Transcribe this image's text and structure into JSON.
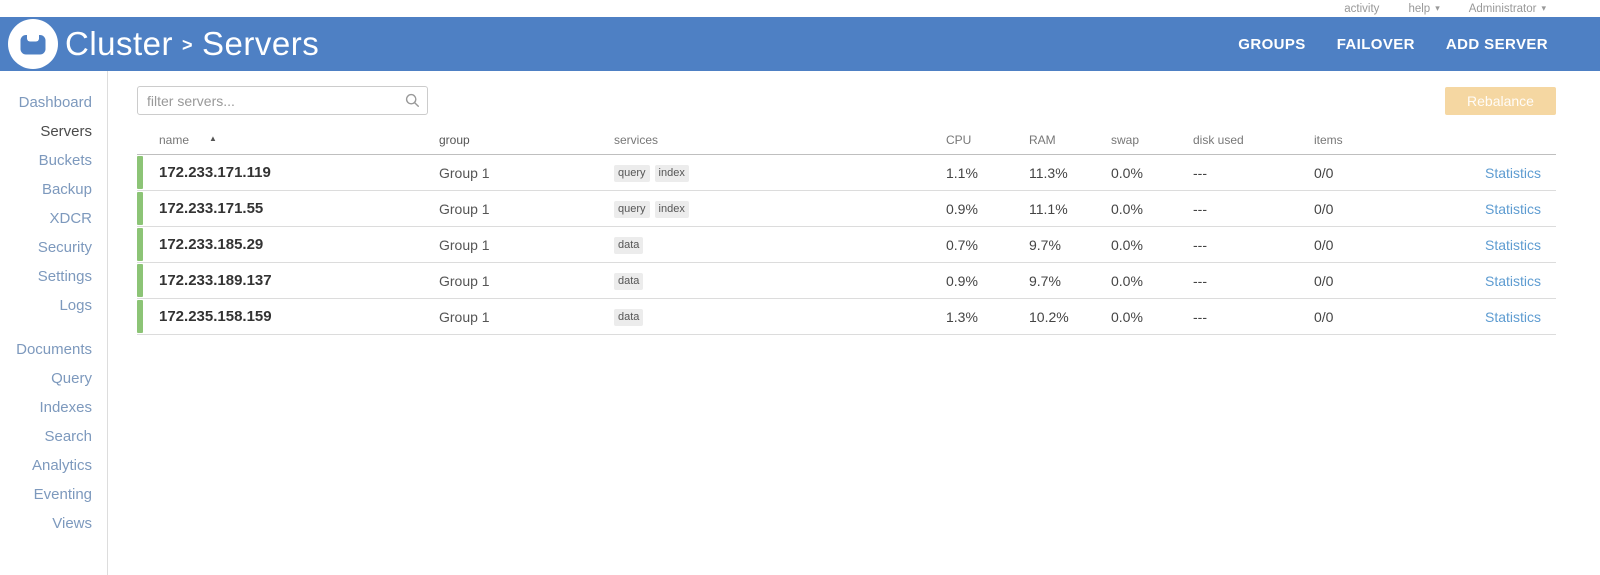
{
  "topbar": {
    "activity": "activity",
    "help": "help",
    "user": "Administrator"
  },
  "header": {
    "breadcrumb_root": "Cluster",
    "breadcrumb_sep": ">",
    "breadcrumb_current": "Servers",
    "nav": [
      {
        "label": "GROUPS"
      },
      {
        "label": "FAILOVER"
      },
      {
        "label": "ADD SERVER"
      }
    ]
  },
  "sidebar": {
    "groups": [
      {
        "items": [
          {
            "label": "Dashboard",
            "active": false
          },
          {
            "label": "Servers",
            "active": true
          },
          {
            "label": "Buckets",
            "active": false
          },
          {
            "label": "Backup",
            "active": false
          },
          {
            "label": "XDCR",
            "active": false
          },
          {
            "label": "Security",
            "active": false
          },
          {
            "label": "Settings",
            "active": false
          },
          {
            "label": "Logs",
            "active": false
          }
        ]
      },
      {
        "items": [
          {
            "label": "Documents",
            "active": false
          },
          {
            "label": "Query",
            "active": false
          },
          {
            "label": "Indexes",
            "active": false
          },
          {
            "label": "Search",
            "active": false
          },
          {
            "label": "Analytics",
            "active": false
          },
          {
            "label": "Eventing",
            "active": false
          },
          {
            "label": "Views",
            "active": false
          }
        ]
      }
    ]
  },
  "toolbar": {
    "filter_placeholder": "filter servers...",
    "rebalance_label": "Rebalance"
  },
  "table": {
    "columns": [
      {
        "id": "name",
        "label": "name"
      },
      {
        "id": "group",
        "label": "group"
      },
      {
        "id": "services",
        "label": "services"
      },
      {
        "id": "cpu",
        "label": "CPU"
      },
      {
        "id": "ram",
        "label": "RAM"
      },
      {
        "id": "swap",
        "label": "swap"
      },
      {
        "id": "disk",
        "label": "disk used"
      },
      {
        "id": "items",
        "label": "items"
      },
      {
        "id": "stats",
        "label": ""
      }
    ],
    "stats_label": "Statistics",
    "rows": [
      {
        "name": "172.233.171.119",
        "group": "Group 1",
        "services": [
          "query",
          "index"
        ],
        "cpu": "1.1%",
        "ram": "11.3%",
        "swap": "0.0%",
        "disk_used": "---",
        "items": "0/0",
        "status": "healthy"
      },
      {
        "name": "172.233.171.55",
        "group": "Group 1",
        "services": [
          "query",
          "index"
        ],
        "cpu": "0.9%",
        "ram": "11.1%",
        "swap": "0.0%",
        "disk_used": "---",
        "items": "0/0",
        "status": "healthy"
      },
      {
        "name": "172.233.185.29",
        "group": "Group 1",
        "services": [
          "data"
        ],
        "cpu": "0.7%",
        "ram": "9.7%",
        "swap": "0.0%",
        "disk_used": "---",
        "items": "0/0",
        "status": "healthy"
      },
      {
        "name": "172.233.189.137",
        "group": "Group 1",
        "services": [
          "data"
        ],
        "cpu": "0.9%",
        "ram": "9.7%",
        "swap": "0.0%",
        "disk_used": "---",
        "items": "0/0",
        "status": "healthy"
      },
      {
        "name": "172.235.158.159",
        "group": "Group 1",
        "services": [
          "data"
        ],
        "cpu": "1.3%",
        "ram": "10.2%",
        "swap": "0.0%",
        "disk_used": "---",
        "items": "0/0",
        "status": "healthy"
      }
    ]
  },
  "icons": {
    "caret_down": "▾",
    "sort_asc": "▲"
  },
  "colors": {
    "header_blue": "#4e80c4",
    "health_green": "#8cc476",
    "link_blue": "#5e9cd1",
    "sidebar_link": "#7d99bd",
    "rebalance_bg": "#f5d7a2"
  }
}
